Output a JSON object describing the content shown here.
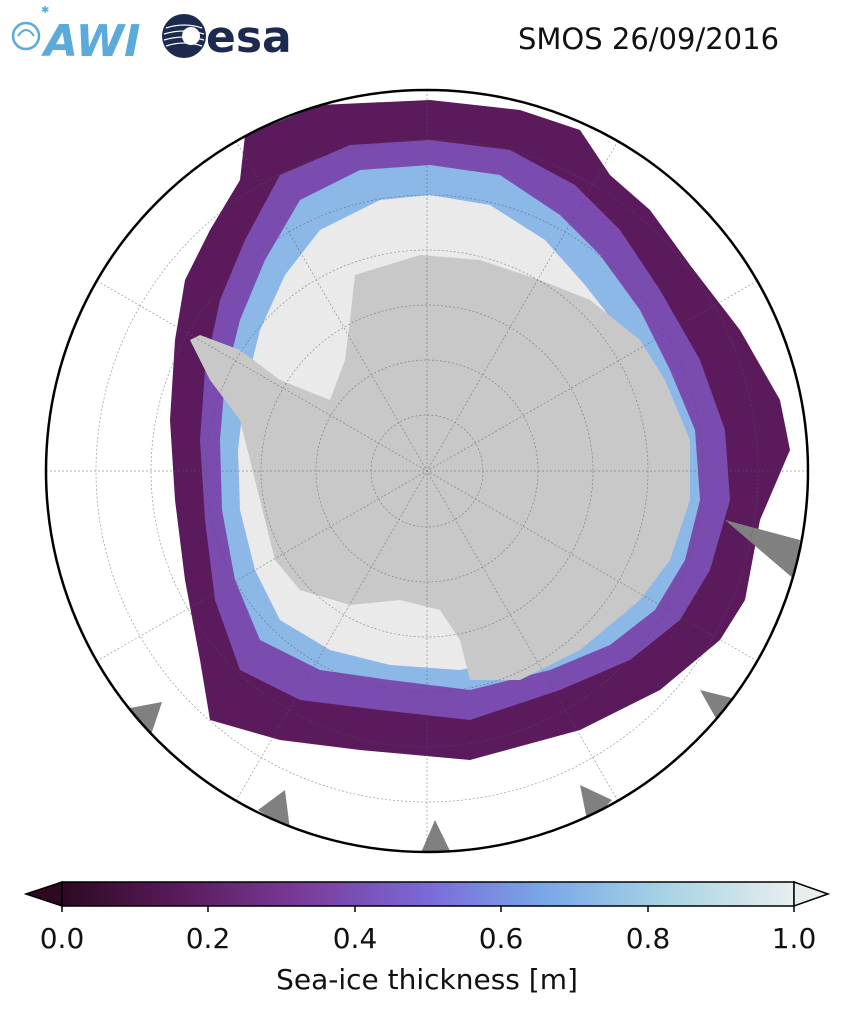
{
  "title": "SMOS 26/09/2016",
  "logos": {
    "left": "AWI",
    "right": "esa",
    "awi_color": "#5aaadc",
    "esa_color": "#1d2a4f"
  },
  "map": {
    "projection": "south-polar-stereographic",
    "land_color": "#c8c8c8",
    "no_data_color": "#808080",
    "ice_thick_color": "#eaeaea"
  },
  "colorbar": {
    "label": "Sea-ice thickness [m]",
    "min": 0.0,
    "max": 1.0,
    "extend": "both",
    "ticks": [
      "0.0",
      "0.2",
      "0.4",
      "0.6",
      "0.8",
      "1.0"
    ],
    "colors": [
      "#2d0a22",
      "#5a1a5c",
      "#7a3c9a",
      "#7a6ad8",
      "#78a8e8",
      "#a8d4e4",
      "#e8eeee"
    ]
  }
}
